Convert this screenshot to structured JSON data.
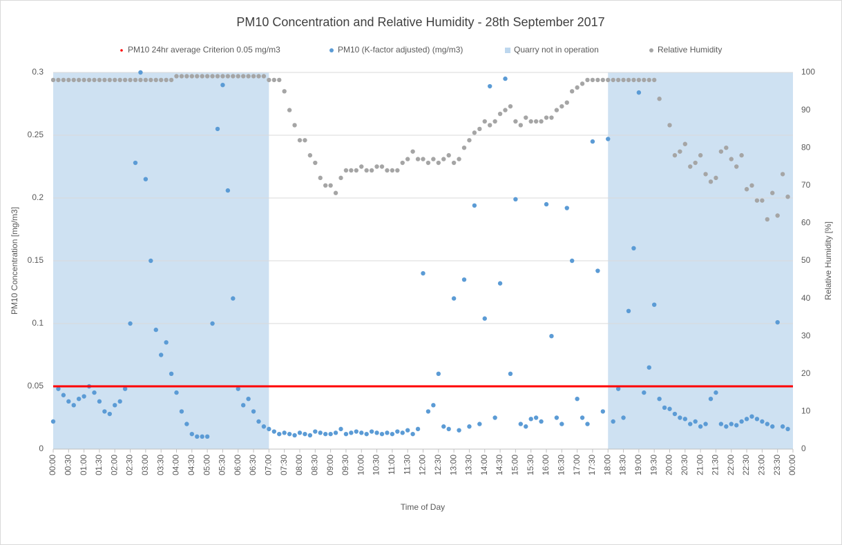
{
  "chart_data": {
    "type": "scatter",
    "title": "PM10 Concentration and Relative Humidity - 28th September 2017",
    "x_label": "Time of Day",
    "y_label": "PM10 Concentration [mg/m3]",
    "y2_label": "Relative Humidity [%]",
    "xlim": [
      0,
      1440
    ],
    "xticks": [
      {
        "value": 0,
        "label": "00:00"
      },
      {
        "value": 30,
        "label": "00:30"
      },
      {
        "value": 60,
        "label": "01:00"
      },
      {
        "value": 90,
        "label": "01:30"
      },
      {
        "value": 120,
        "label": "02:00"
      },
      {
        "value": 150,
        "label": "02:30"
      },
      {
        "value": 180,
        "label": "03:00"
      },
      {
        "value": 210,
        "label": "03:30"
      },
      {
        "value": 240,
        "label": "04:00"
      },
      {
        "value": 270,
        "label": "04:30"
      },
      {
        "value": 300,
        "label": "05:00"
      },
      {
        "value": 330,
        "label": "05:30"
      },
      {
        "value": 360,
        "label": "06:00"
      },
      {
        "value": 390,
        "label": "06:30"
      },
      {
        "value": 420,
        "label": "07:00"
      },
      {
        "value": 450,
        "label": "07:30"
      },
      {
        "value": 480,
        "label": "08:00"
      },
      {
        "value": 510,
        "label": "08:30"
      },
      {
        "value": 540,
        "label": "09:00"
      },
      {
        "value": 570,
        "label": "09:30"
      },
      {
        "value": 600,
        "label": "10:00"
      },
      {
        "value": 630,
        "label": "10:30"
      },
      {
        "value": 660,
        "label": "11:00"
      },
      {
        "value": 690,
        "label": "11:30"
      },
      {
        "value": 720,
        "label": "12:00"
      },
      {
        "value": 750,
        "label": "12:30"
      },
      {
        "value": 780,
        "label": "13:00"
      },
      {
        "value": 810,
        "label": "13:30"
      },
      {
        "value": 840,
        "label": "14:00"
      },
      {
        "value": 870,
        "label": "14:30"
      },
      {
        "value": 900,
        "label": "15:00"
      },
      {
        "value": 930,
        "label": "15:30"
      },
      {
        "value": 960,
        "label": "16:00"
      },
      {
        "value": 990,
        "label": "16:30"
      },
      {
        "value": 1020,
        "label": "17:00"
      },
      {
        "value": 1050,
        "label": "17:30"
      },
      {
        "value": 1080,
        "label": "18:00"
      },
      {
        "value": 1110,
        "label": "18:30"
      },
      {
        "value": 1140,
        "label": "19:00"
      },
      {
        "value": 1170,
        "label": "19:30"
      },
      {
        "value": 1200,
        "label": "20:00"
      },
      {
        "value": 1230,
        "label": "20:30"
      },
      {
        "value": 1260,
        "label": "21:00"
      },
      {
        "value": 1290,
        "label": "21:30"
      },
      {
        "value": 1320,
        "label": "22:00"
      },
      {
        "value": 1350,
        "label": "22:30"
      },
      {
        "value": 1380,
        "label": "23:00"
      },
      {
        "value": 1410,
        "label": "23:30"
      },
      {
        "value": 1440,
        "label": "00:00"
      }
    ],
    "ylim": [
      0,
      0.3
    ],
    "yticks": [
      0,
      0.05,
      0.1,
      0.15,
      0.2,
      0.25,
      0.3
    ],
    "y2lim": [
      0,
      100
    ],
    "y2ticks": [
      0,
      10,
      20,
      30,
      40,
      50,
      60,
      70,
      80,
      90,
      100
    ],
    "grid": true,
    "legend": "top",
    "x": [
      0,
      10,
      20,
      30,
      40,
      50,
      60,
      70,
      80,
      90,
      100,
      110,
      120,
      130,
      140,
      150,
      160,
      170,
      180,
      190,
      200,
      210,
      220,
      230,
      240,
      250,
      260,
      270,
      280,
      290,
      300,
      310,
      320,
      330,
      340,
      350,
      360,
      370,
      380,
      390,
      400,
      410,
      420,
      430,
      440,
      450,
      460,
      470,
      480,
      490,
      500,
      510,
      520,
      530,
      540,
      550,
      560,
      570,
      580,
      590,
      600,
      610,
      620,
      630,
      640,
      650,
      660,
      670,
      680,
      690,
      700,
      710,
      720,
      730,
      740,
      750,
      760,
      770,
      780,
      790,
      800,
      810,
      820,
      830,
      840,
      850,
      860,
      870,
      880,
      890,
      900,
      910,
      920,
      930,
      940,
      950,
      960,
      970,
      980,
      990,
      1000,
      1010,
      1020,
      1030,
      1040,
      1050,
      1060,
      1070,
      1080,
      1090,
      1100,
      1110,
      1120,
      1130,
      1140,
      1150,
      1160,
      1170,
      1180,
      1190,
      1200,
      1210,
      1220,
      1230,
      1240,
      1250,
      1260,
      1270,
      1280,
      1290,
      1300,
      1310,
      1320,
      1330,
      1340,
      1350,
      1360,
      1370,
      1380,
      1390,
      1400,
      1410,
      1420,
      1430
    ],
    "series": [
      {
        "name": "PM10 24hr average Criterion 0.05 mg/m3",
        "color": "#ff0000",
        "kind": "line",
        "x": [
          0,
          1440
        ],
        "values": [
          0.05,
          0.05
        ]
      },
      {
        "name": "PM10 (K-factor adjusted) (mg/m3)",
        "color": "#5b9bd5",
        "kind": "points",
        "values": [
          0.022,
          0.048,
          0.043,
          0.038,
          0.035,
          0.04,
          0.042,
          0.05,
          0.045,
          0.038,
          0.03,
          0.028,
          0.035,
          0.038,
          0.048,
          0.1,
          0.228,
          0.3,
          0.215,
          0.15,
          0.095,
          0.075,
          0.085,
          0.06,
          0.045,
          0.03,
          0.02,
          0.012,
          0.01,
          0.01,
          0.01,
          0.1,
          0.255,
          0.29,
          0.206,
          0.12,
          0.048,
          0.035,
          0.04,
          0.03,
          0.022,
          0.018,
          0.016,
          0.014,
          0.012,
          0.013,
          0.012,
          0.011,
          0.013,
          0.012,
          0.011,
          0.014,
          0.013,
          0.012,
          0.012,
          0.013,
          0.016,
          0.012,
          0.013,
          0.014,
          0.013,
          0.012,
          0.014,
          0.013,
          0.012,
          0.013,
          0.012,
          0.014,
          0.013,
          0.015,
          0.012,
          0.016,
          0.14,
          0.03,
          0.035,
          0.06,
          0.018,
          0.016,
          0.12,
          0.015,
          0.135,
          0.018,
          0.194,
          0.02,
          0.104,
          0.289,
          0.025,
          0.132,
          0.295,
          0.06,
          0.199,
          0.02,
          0.018,
          0.024,
          0.025,
          0.022,
          0.195,
          0.09,
          0.025,
          0.02,
          0.192,
          0.15,
          0.04,
          0.025,
          0.02,
          0.245,
          0.142,
          0.03,
          0.247,
          0.022,
          0.048,
          0.025,
          0.11,
          0.16,
          0.284,
          0.045,
          0.065,
          0.115,
          0.04,
          0.033,
          0.032,
          0.028,
          0.025,
          0.024,
          0.02,
          0.022,
          0.018,
          0.02,
          0.04,
          0.045,
          0.02,
          0.018,
          0.02,
          0.019,
          0.022,
          0.024,
          0.026,
          0.024,
          0.022,
          0.02,
          0.018,
          0.101,
          0.018,
          0.016
        ]
      },
      {
        "name": "Quarry not in operation",
        "color": "#bdd7ee",
        "kind": "spans",
        "spans": [
          [
            0,
            420
          ],
          [
            1080,
            1440
          ]
        ]
      },
      {
        "name": "Relative Humidity",
        "color": "#a5a5a5",
        "kind": "points",
        "axis": "y2",
        "values": [
          98,
          98,
          98,
          98,
          98,
          98,
          98,
          98,
          98,
          98,
          98,
          98,
          98,
          98,
          98,
          98,
          98,
          98,
          98,
          98,
          98,
          98,
          98,
          98,
          99,
          99,
          99,
          99,
          99,
          99,
          99,
          99,
          99,
          99,
          99,
          99,
          99,
          99,
          99,
          99,
          99,
          99,
          98,
          98,
          98,
          95,
          90,
          86,
          82,
          82,
          78,
          76,
          72,
          70,
          70,
          68,
          72,
          74,
          74,
          74,
          75,
          74,
          74,
          75,
          75,
          74,
          74,
          74,
          76,
          77,
          79,
          77,
          77,
          76,
          77,
          76,
          77,
          78,
          76,
          77,
          80,
          82,
          84,
          85,
          87,
          86,
          87,
          89,
          90,
          91,
          87,
          86,
          88,
          87,
          87,
          87,
          88,
          88,
          90,
          91,
          92,
          95,
          96,
          97,
          98,
          98,
          98,
          98,
          98,
          98,
          98,
          98,
          98,
          98,
          98,
          98,
          98,
          98,
          93,
          null,
          86,
          78,
          79,
          81,
          75,
          76,
          78,
          73,
          71,
          72,
          79,
          80,
          77,
          75,
          78,
          69,
          70,
          66,
          66,
          61,
          68,
          62,
          73,
          67
        ]
      }
    ]
  }
}
